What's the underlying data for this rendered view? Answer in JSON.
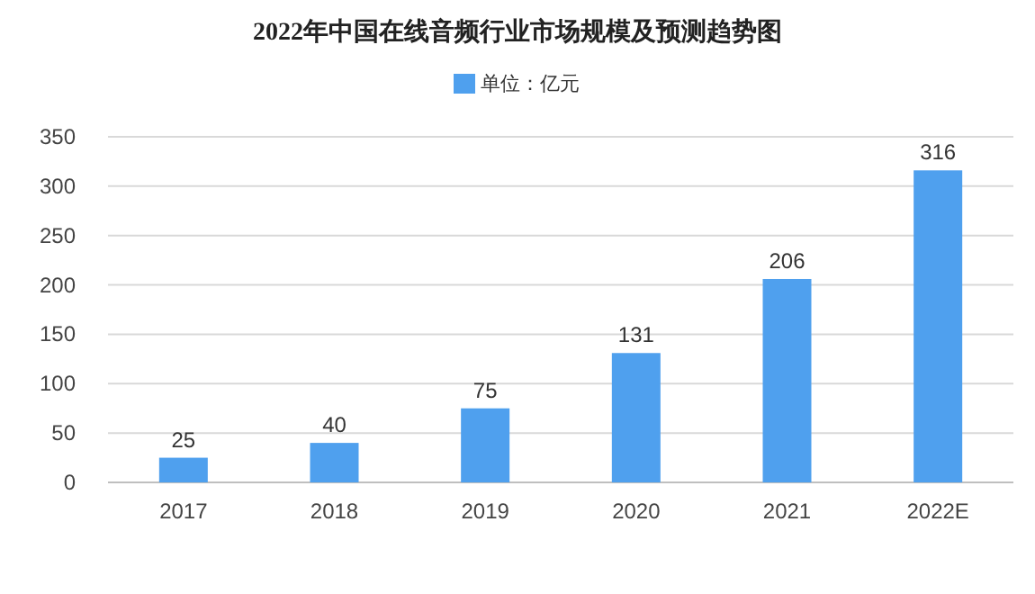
{
  "chart_data": {
    "type": "bar",
    "title": "2022年中国在线音频行业市场规模及预测趋势图",
    "categories": [
      "2017",
      "2018",
      "2019",
      "2020",
      "2021",
      "2022E"
    ],
    "series": [
      {
        "name": "单位：亿元",
        "color": "#4fa0ee",
        "values": [
          25,
          40,
          75,
          131,
          206,
          316
        ]
      }
    ],
    "ylim": [
      0,
      350
    ],
    "yticks": [
      0,
      50,
      100,
      150,
      200,
      250,
      300,
      350
    ],
    "grid": "y",
    "legend": "top",
    "data_labels": true
  }
}
